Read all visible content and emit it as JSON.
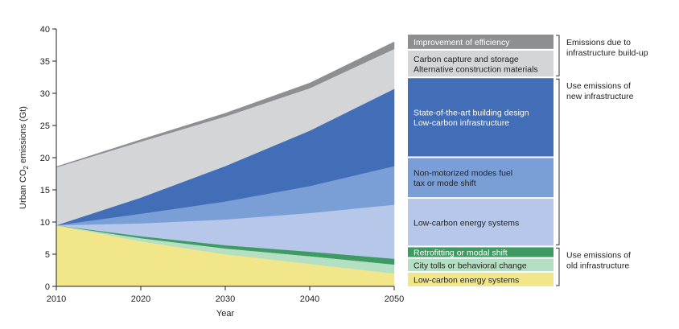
{
  "chart_data": {
    "type": "area",
    "stacked": true,
    "xlabel": "Year",
    "ylabel": "Urban CO₂ emissions (Gt)",
    "ylabel_parts": [
      "Urban CO",
      "2",
      " emissions (Gt)"
    ],
    "xlim": [
      2010,
      2050
    ],
    "ylim": [
      0,
      40
    ],
    "x_ticks": [
      "2010",
      "2020",
      "2030",
      "2040",
      "2050"
    ],
    "y_ticks": [
      "0",
      "5",
      "10",
      "15",
      "20",
      "25",
      "30",
      "35",
      "40"
    ],
    "x": [
      2010,
      2020,
      2030,
      2040,
      2050
    ],
    "series": [
      {
        "name": "Low-carbon energy systems",
        "color": "#f2e68a",
        "text_color": "#222222",
        "values": [
          9.5,
          7.0,
          5.0,
          3.5,
          2.0
        ]
      },
      {
        "name": "City tolls or behavioral change",
        "color": "#b5dfc2",
        "text_color": "#222222",
        "values": [
          0,
          0.5,
          0.9,
          1.2,
          1.4
        ]
      },
      {
        "name": "Retrofitting or modal shift",
        "color": "#3e9a63",
        "text_color": "#ffffff",
        "values": [
          0,
          0.3,
          0.5,
          0.7,
          0.9
        ]
      },
      {
        "name": "Low-carbon energy systems",
        "color": "#b6c7e9",
        "text_color": "#222222",
        "values": [
          0,
          2.0,
          4.0,
          6.0,
          8.4
        ]
      },
      {
        "name": "Non-motorized modes fuel tax or mode shift",
        "color": "#7a9fd6",
        "text_color": "#222222",
        "values": [
          0,
          1.5,
          2.8,
          4.2,
          6.0
        ]
      },
      {
        "name": "State-of-the-art building design Low-carbon infrastructure",
        "color": "#426eb7",
        "text_color": "#ffffff",
        "values": [
          0,
          2.5,
          5.5,
          8.6,
          12.0
        ]
      },
      {
        "name": "Carbon capture and storage Alternative construction materials",
        "color": "#d4d5d6",
        "text_color": "#222222",
        "values": [
          9.0,
          8.7,
          7.7,
          6.6,
          6.2
        ]
      },
      {
        "name": "Improvement of efficiency",
        "color": "#8e8f91",
        "text_color": "#ffffff",
        "values": [
          0.1,
          0.3,
          0.5,
          0.8,
          1.1
        ]
      }
    ],
    "legend": [
      {
        "lines": [
          "Improvement of efficiency"
        ],
        "color": "#8e8f91",
        "text_color": "#ffffff",
        "weight": 1.1
      },
      {
        "lines": [
          "Carbon capture and storage",
          "Alternative construction materials"
        ],
        "color": "#d4d5d6",
        "text_color": "#222222",
        "weight": 2.0
      },
      {
        "lines": [
          "State-of-the-art building design",
          "Low-carbon infrastructure"
        ],
        "color": "#426eb7",
        "text_color": "#ffffff",
        "weight": 6.0
      },
      {
        "lines": [
          "Non-motorized modes fuel",
          "tax or mode shift"
        ],
        "color": "#7a9fd6",
        "text_color": "#222222",
        "weight": 3.0
      },
      {
        "lines": [
          "Low-carbon energy systems"
        ],
        "color": "#b6c7e9",
        "text_color": "#222222",
        "weight": 3.6
      },
      {
        "lines": [
          "Retrofitting or modal shift"
        ],
        "color": "#3e9a63",
        "text_color": "#ffffff",
        "weight": 0.75
      },
      {
        "lines": [
          "City tolls or behavioral change"
        ],
        "color": "#b5dfc2",
        "text_color": "#222222",
        "weight": 0.95
      },
      {
        "lines": [
          "Low-carbon energy systems"
        ],
        "color": "#f2e68a",
        "text_color": "#222222",
        "weight": 1.05
      }
    ],
    "groups": [
      {
        "lines": [
          "Emissions due to",
          "infrastructure build-up"
        ],
        "from": 0,
        "to": 1
      },
      {
        "lines": [
          "Use emissions of",
          "new infrastructure"
        ],
        "from": 2,
        "to": 4
      },
      {
        "lines": [
          "Use emissions of",
          "old infrastructure"
        ],
        "from": 5,
        "to": 7
      }
    ]
  }
}
